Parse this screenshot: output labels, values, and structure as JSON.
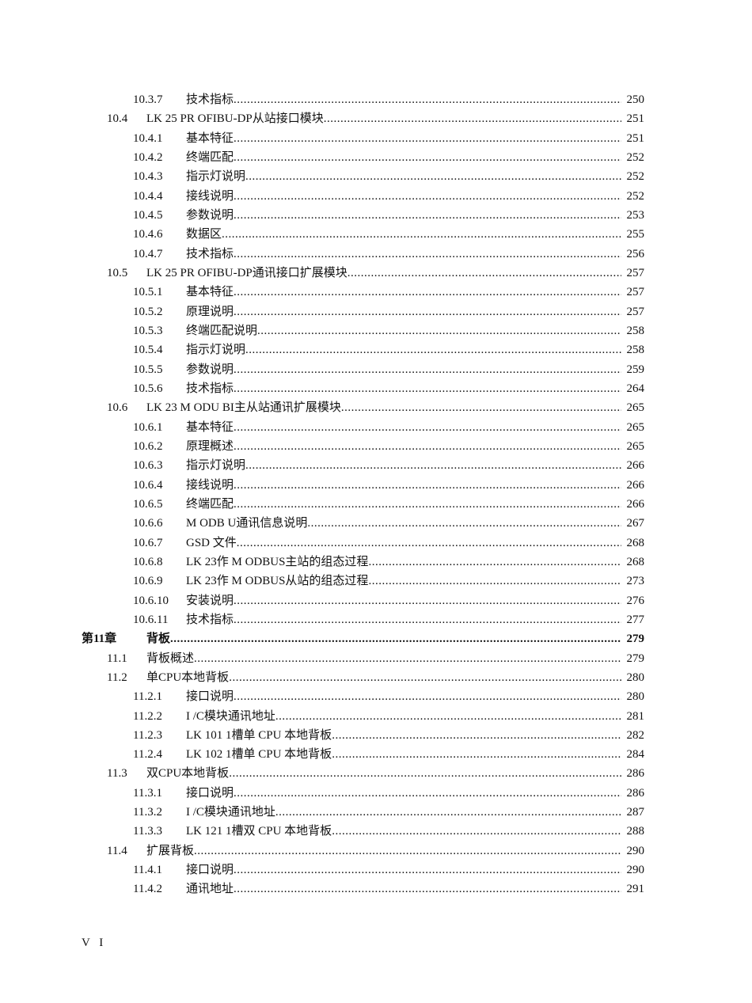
{
  "toc": [
    {
      "level": 3,
      "num": "10.3.7",
      "title": "技术指标",
      "page": "250"
    },
    {
      "level": 2,
      "num": "10.4",
      "title": "LK 25  PR OFIBU-DP从站接口模块",
      "page": "251"
    },
    {
      "level": 3,
      "num": "10.4.1",
      "title": "基本特征",
      "page": "251"
    },
    {
      "level": 3,
      "num": "10.4.2",
      "title": "终端匹配",
      "page": "252"
    },
    {
      "level": 3,
      "num": "10.4.3",
      "title": "指示灯说明",
      "page": "252"
    },
    {
      "level": 3,
      "num": "10.4.4",
      "title": "接线说明",
      "page": "252"
    },
    {
      "level": 3,
      "num": "10.4.5",
      "title": "参数说明",
      "page": "253"
    },
    {
      "level": 3,
      "num": "10.4.6",
      "title": "数据区",
      "page": "255"
    },
    {
      "level": 3,
      "num": "10.4.7",
      "title": "技术指标",
      "page": "256"
    },
    {
      "level": 2,
      "num": "10.5",
      "title": "LK 25  PR OFIBU-DP通讯接口扩展模块",
      "page": "257"
    },
    {
      "level": 3,
      "num": "10.5.1",
      "title": "基本特征",
      "page": "257"
    },
    {
      "level": 3,
      "num": "10.5.2",
      "title": "原理说明",
      "page": "257"
    },
    {
      "level": 3,
      "num": "10.5.3",
      "title": "终端匹配说明",
      "page": "258"
    },
    {
      "level": 3,
      "num": "10.5.4",
      "title": "指示灯说明",
      "page": "258"
    },
    {
      "level": 3,
      "num": "10.5.5",
      "title": "参数说明",
      "page": "259"
    },
    {
      "level": 3,
      "num": "10.5.6",
      "title": "技术指标",
      "page": "264"
    },
    {
      "level": 2,
      "num": "10.6",
      "title": "LK 23  M ODU BI主从站通讯扩展模块 ",
      "page": "265"
    },
    {
      "level": 3,
      "num": "10.6.1",
      "title": "基本特征",
      "page": "265"
    },
    {
      "level": 3,
      "num": "10.6.2",
      "title": "原理概述",
      "page": "265"
    },
    {
      "level": 3,
      "num": "10.6.3",
      "title": "指示灯说明",
      "page": "266"
    },
    {
      "level": 3,
      "num": "10.6.4",
      "title": "接线说明",
      "page": "266"
    },
    {
      "level": 3,
      "num": "10.6.5",
      "title": "终端匹配",
      "page": "266"
    },
    {
      "level": 3,
      "num": "10.6.6",
      "title": "M ODB U通讯信息说明 ",
      "page": "267"
    },
    {
      "level": 3,
      "num": "10.6.7",
      "title": "GSD 文件",
      "page": "268"
    },
    {
      "level": 3,
      "num": "10.6.8",
      "title": "LK 23作 M ODBUS主站的组态过程",
      "page": "268"
    },
    {
      "level": 3,
      "num": "10.6.9",
      "title": "LK 23作 M ODBUS从站的组态过程",
      "page": "273"
    },
    {
      "level": 3,
      "num": "10.6.10",
      "title": "安装说明",
      "page": "276"
    },
    {
      "level": 3,
      "num": "10.6.11",
      "title": "技术指标",
      "page": "277"
    },
    {
      "level": 1,
      "num": "第11章",
      "title": "背板 ",
      "page": "279"
    },
    {
      "level": 2,
      "num": "11.1",
      "title": "背板概述",
      "page": "279"
    },
    {
      "level": 2,
      "num": "11.2",
      "title": "单CPU本地背板 ",
      "page": "280"
    },
    {
      "level": 3,
      "num": "11.2.1",
      "title": "接口说明",
      "page": "280"
    },
    {
      "level": 3,
      "num": "11.2.2",
      "title": "I /C模块通讯地址 ",
      "page": "281"
    },
    {
      "level": 3,
      "num": "11.2.3",
      "title": "LK 101   1槽单 CPU 本地背板 ",
      "page": "282"
    },
    {
      "level": 3,
      "num": "11.2.4",
      "title": "LK 102   1槽单 CPU 本地背板 ",
      "page": "284"
    },
    {
      "level": 2,
      "num": "11.3",
      "title": "双CPU本地背板 ",
      "page": "286"
    },
    {
      "level": 3,
      "num": "11.3.1",
      "title": "接口说明",
      "page": "286"
    },
    {
      "level": 3,
      "num": "11.3.2",
      "title": "I /C模块通讯地址 ",
      "page": "287"
    },
    {
      "level": 3,
      "num": "11.3.3",
      "title": "LK 121   1槽双 CPU 本地背板 ",
      "page": "288"
    },
    {
      "level": 2,
      "num": "11.4",
      "title": "扩展背板",
      "page": "290"
    },
    {
      "level": 3,
      "num": "11.4.1",
      "title": "接口说明",
      "page": "290"
    },
    {
      "level": 3,
      "num": "11.4.2",
      "title": "通讯地址",
      "page": "291"
    }
  ],
  "footer": {
    "page_label": "V I"
  }
}
